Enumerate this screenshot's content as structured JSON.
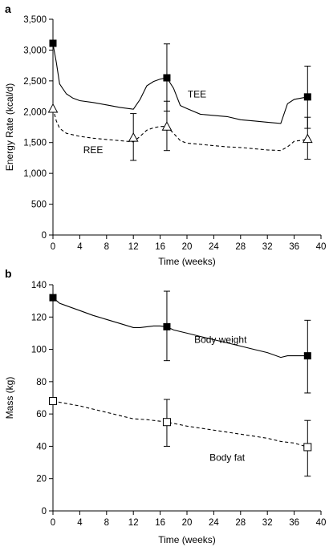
{
  "chart_data": [
    {
      "panel_label": "a",
      "type": "line",
      "xlabel": "Time (weeks)",
      "ylabel": "Energy Rate (kcal/d)",
      "xlim": [
        0,
        40
      ],
      "ylim": [
        0,
        3500
      ],
      "x_ticks": [
        "0",
        "4",
        "8",
        "12",
        "16",
        "20",
        "24",
        "28",
        "32",
        "36",
        "40"
      ],
      "y_ticks": [
        "0",
        "500",
        "1,000",
        "1,500",
        "2,000",
        "2,500",
        "3,000",
        "3,500"
      ],
      "series": [
        {
          "name": "TEE",
          "style": "solid",
          "marker": "filled-square",
          "curve": [
            [
              0,
              3100
            ],
            [
              0.5,
              2800
            ],
            [
              1,
              2450
            ],
            [
              2,
              2290
            ],
            [
              3,
              2220
            ],
            [
              4,
              2180
            ],
            [
              6,
              2150
            ],
            [
              8,
              2110
            ],
            [
              10,
              2070
            ],
            [
              12,
              2040
            ],
            [
              13,
              2200
            ],
            [
              14,
              2420
            ],
            [
              15,
              2490
            ],
            [
              16,
              2530
            ],
            [
              17,
              2550
            ],
            [
              18,
              2380
            ],
            [
              19,
              2100
            ],
            [
              20,
              2050
            ],
            [
              22,
              1960
            ],
            [
              24,
              1940
            ],
            [
              26,
              1920
            ],
            [
              28,
              1870
            ],
            [
              30,
              1850
            ],
            [
              32,
              1830
            ],
            [
              34,
              1810
            ],
            [
              35,
              2130
            ],
            [
              36,
              2200
            ],
            [
              38,
              2240
            ]
          ],
          "points": [
            {
              "x": 0,
              "y": 3110
            },
            {
              "x": 17,
              "y": 2550,
              "err_lo": 2010,
              "err_hi": 3100
            },
            {
              "x": 38,
              "y": 2240,
              "err_lo": 1730,
              "err_hi": 2740
            }
          ]
        },
        {
          "name": "REE",
          "style": "dashed",
          "marker": "open-triangle",
          "curve": [
            [
              0,
              2050
            ],
            [
              0.5,
              1850
            ],
            [
              1,
              1730
            ],
            [
              2,
              1650
            ],
            [
              4,
              1600
            ],
            [
              6,
              1570
            ],
            [
              8,
              1550
            ],
            [
              10,
              1530
            ],
            [
              12,
              1510
            ],
            [
              13,
              1600
            ],
            [
              14,
              1700
            ],
            [
              15,
              1740
            ],
            [
              16,
              1760
            ],
            [
              17,
              1760
            ],
            [
              18,
              1650
            ],
            [
              19,
              1530
            ],
            [
              20,
              1490
            ],
            [
              22,
              1470
            ],
            [
              24,
              1450
            ],
            [
              26,
              1430
            ],
            [
              28,
              1420
            ],
            [
              30,
              1400
            ],
            [
              32,
              1380
            ],
            [
              34,
              1370
            ],
            [
              35,
              1430
            ],
            [
              36,
              1520
            ],
            [
              38,
              1550
            ]
          ],
          "points": [
            {
              "x": 0,
              "y": 2050
            },
            {
              "x": 12,
              "y": 1580,
              "err_lo": 1210,
              "err_hi": 1970
            },
            {
              "x": 17,
              "y": 1760,
              "err_lo": 1370,
              "err_hi": 2170
            },
            {
              "x": 38,
              "y": 1560,
              "err_lo": 1230,
              "err_hi": 1910
            }
          ]
        }
      ],
      "annotations": [
        {
          "text": "TEE",
          "x": 21.5,
          "y": 2230
        },
        {
          "text": "REE",
          "x": 6,
          "y": 1330
        }
      ]
    },
    {
      "panel_label": "b",
      "type": "line",
      "xlabel": "Time (weeks)",
      "ylabel": "Mass (kg)",
      "xlim": [
        0,
        40
      ],
      "ylim": [
        0,
        140
      ],
      "x_ticks": [
        "0",
        "4",
        "8",
        "12",
        "16",
        "20",
        "24",
        "28",
        "32",
        "36",
        "40"
      ],
      "y_ticks": [
        "0",
        "20",
        "40",
        "60",
        "80",
        "100",
        "120",
        "140"
      ],
      "series": [
        {
          "name": "Body weight",
          "style": "solid",
          "marker": "filled-square",
          "curve": [
            [
              0,
              132
            ],
            [
              1,
              128.5
            ],
            [
              2,
              127
            ],
            [
              4,
              124
            ],
            [
              6,
              121
            ],
            [
              8,
              118.5
            ],
            [
              10,
              116
            ],
            [
              12,
              113.5
            ],
            [
              13,
              113.5
            ],
            [
              14,
              114
            ],
            [
              15,
              114.5
            ],
            [
              16,
              114.5
            ],
            [
              17,
              114
            ],
            [
              18,
              112
            ],
            [
              20,
              110
            ],
            [
              22,
              108
            ],
            [
              24,
              106
            ],
            [
              26,
              104
            ],
            [
              28,
              102
            ],
            [
              30,
              100
            ],
            [
              32,
              98
            ],
            [
              34,
              95
            ],
            [
              35,
              96
            ],
            [
              36,
              96
            ],
            [
              38,
              96
            ]
          ],
          "points": [
            {
              "x": 0,
              "y": 132
            },
            {
              "x": 17,
              "y": 114,
              "err_lo": 93,
              "err_hi": 136
            },
            {
              "x": 38,
              "y": 96,
              "err_lo": 73,
              "err_hi": 118
            }
          ]
        },
        {
          "name": "Body fat",
          "style": "dashed",
          "marker": "open-square",
          "curve": [
            [
              0,
              68
            ],
            [
              2,
              66.5
            ],
            [
              4,
              65
            ],
            [
              6,
              63
            ],
            [
              8,
              61
            ],
            [
              10,
              59
            ],
            [
              12,
              57
            ],
            [
              14,
              56.5
            ],
            [
              16,
              55.5
            ],
            [
              17,
              55
            ],
            [
              20,
              52.5
            ],
            [
              24,
              50
            ],
            [
              28,
              47.5
            ],
            [
              32,
              45
            ],
            [
              34,
              43
            ],
            [
              36,
              42
            ],
            [
              38,
              39.5
            ]
          ],
          "points": [
            {
              "x": 0,
              "y": 68
            },
            {
              "x": 17,
              "y": 55,
              "err_lo": 40,
              "err_hi": 69
            },
            {
              "x": 38,
              "y": 39.5,
              "err_lo": 21.5,
              "err_hi": 56
            }
          ]
        }
      ],
      "annotations": [
        {
          "text": "Body weight",
          "x": 25,
          "y": 104
        },
        {
          "text": "Body fat",
          "x": 26,
          "y": 31
        }
      ]
    }
  ]
}
